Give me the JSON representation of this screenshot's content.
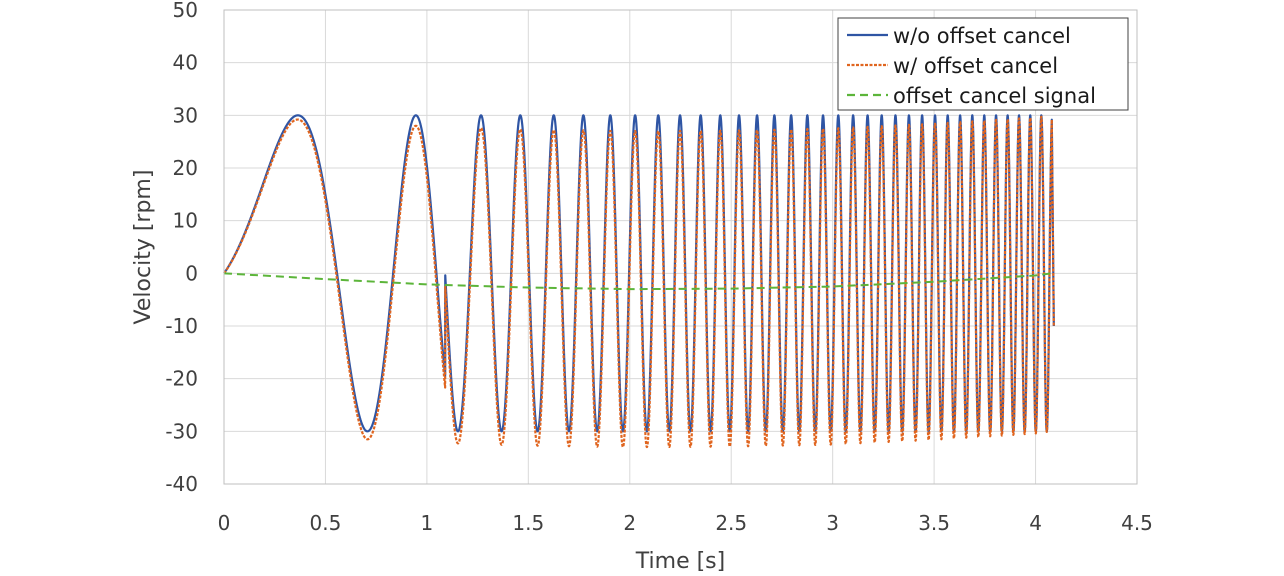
{
  "chart_data": {
    "type": "line",
    "title": "",
    "xlabel": "Time [s]",
    "ylabel": "Velocity [rpm]",
    "xlim": [
      0,
      4.5
    ],
    "ylim": [
      -40,
      50
    ],
    "x_ticks": [
      "0",
      "0.5",
      "1",
      "1.5",
      "2",
      "2.5",
      "3",
      "3.5",
      "4",
      "4.5"
    ],
    "y_ticks": [
      "-40",
      "-30",
      "-20",
      "-10",
      "0",
      "10",
      "20",
      "30",
      "40",
      "50"
    ],
    "grid": true,
    "legend_position": "top-right",
    "series": [
      {
        "name": "w/o offset cancel",
        "color": "#2f55a4",
        "style": "solid",
        "description_points": {
          "x": [
            0,
            0.36,
            0.72,
            0.94,
            1.09,
            1.21,
            1.31,
            1.4,
            1.47,
            1.53
          ],
          "y": [
            0,
            30,
            -30,
            30,
            -30,
            30,
            -30,
            30,
            -30,
            30
          ]
        }
      },
      {
        "name": "w/ offset cancel",
        "color": "#e0651f",
        "style": "dotted",
        "description_points": {
          "x": [
            0,
            0.36,
            0.73,
            0.94,
            1.1,
            1.21,
            1.31,
            1.4,
            1.47,
            1.53
          ],
          "y": [
            0,
            29,
            -32,
            28,
            -31,
            28,
            -32,
            27,
            -32,
            27
          ]
        }
      },
      {
        "name": "offset cancel signal",
        "color": "#5cb53a",
        "style": "dashed",
        "x": [
          0,
          0.5,
          1.0,
          1.5,
          2.0,
          2.5,
          3.0,
          3.5,
          4.0,
          4.08
        ],
        "y": [
          0,
          -1.1,
          -2.1,
          -2.7,
          -3.0,
          -2.9,
          -2.5,
          -1.6,
          -0.4,
          0
        ]
      }
    ],
    "chirp": {
      "amplitude": 30,
      "end_time": 4.08,
      "end_value": -10
    }
  }
}
